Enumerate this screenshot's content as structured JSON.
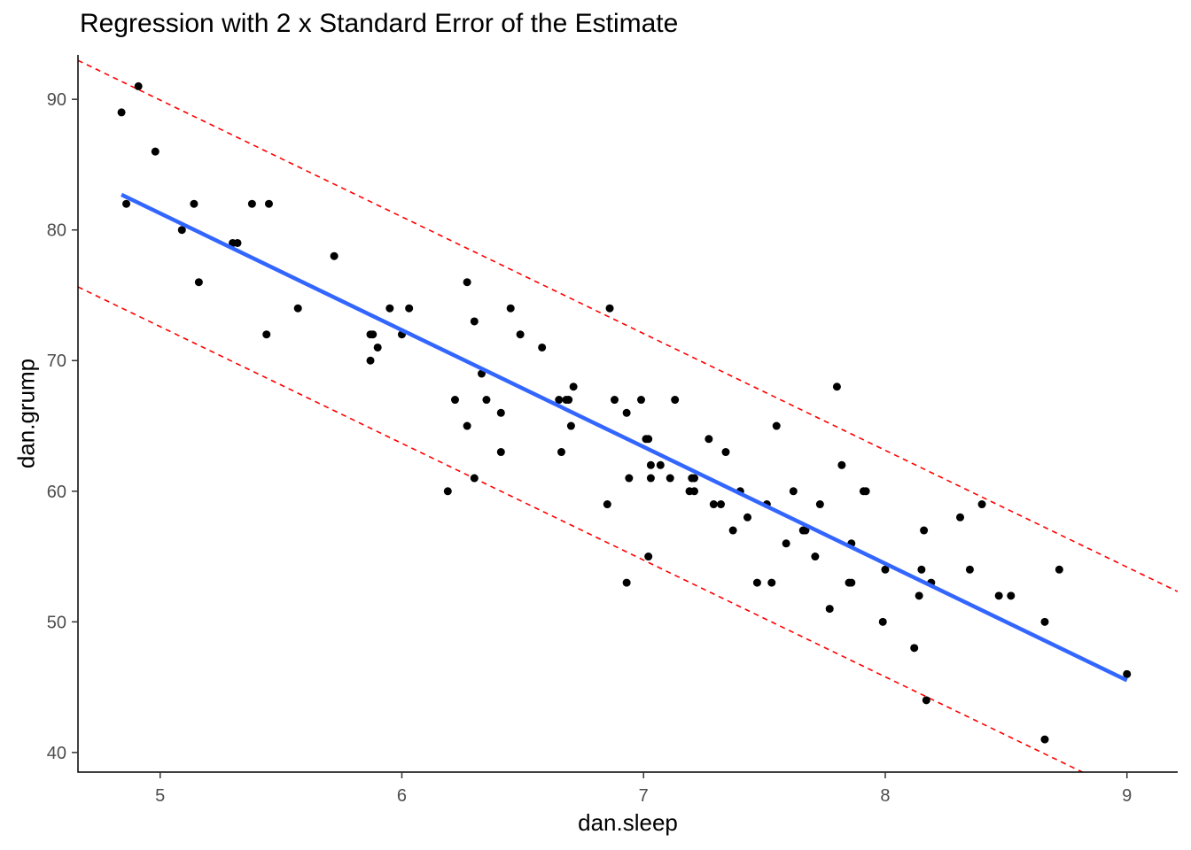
{
  "chart_data": {
    "type": "scatter",
    "title": "Regression with 2 x Standard Error of the Estimate",
    "xlabel": "dan.sleep",
    "ylabel": "dan.grump",
    "xlim": [
      4.66,
      9.21
    ],
    "ylim": [
      38.5,
      93.4
    ],
    "x_ticks": [
      5,
      6,
      7,
      8,
      9
    ],
    "y_ticks": [
      40,
      50,
      60,
      70,
      80,
      90
    ],
    "grid": false,
    "colors": {
      "points": "#000000",
      "regression_line": "#3366ff",
      "se_lines": "#ff0000",
      "axis": "#000000",
      "tick_text": "#4d4d4d"
    },
    "regression_line": {
      "intercept": 125.956,
      "slope": -8.937,
      "x_range": [
        4.84,
        9.0
      ]
    },
    "se_lines": {
      "offset": 8.67,
      "style": "dashed"
    },
    "points": [
      {
        "x": 4.84,
        "y": 89
      },
      {
        "x": 4.86,
        "y": 82
      },
      {
        "x": 4.91,
        "y": 91
      },
      {
        "x": 4.98,
        "y": 86
      },
      {
        "x": 5.09,
        "y": 80
      },
      {
        "x": 5.14,
        "y": 82
      },
      {
        "x": 5.16,
        "y": 76
      },
      {
        "x": 5.3,
        "y": 79
      },
      {
        "x": 5.32,
        "y": 79
      },
      {
        "x": 5.38,
        "y": 82
      },
      {
        "x": 5.44,
        "y": 72
      },
      {
        "x": 5.45,
        "y": 82
      },
      {
        "x": 5.57,
        "y": 74
      },
      {
        "x": 5.72,
        "y": 78
      },
      {
        "x": 5.87,
        "y": 72
      },
      {
        "x": 5.87,
        "y": 70
      },
      {
        "x": 5.88,
        "y": 72
      },
      {
        "x": 5.9,
        "y": 71
      },
      {
        "x": 5.95,
        "y": 74
      },
      {
        "x": 6.0,
        "y": 72
      },
      {
        "x": 6.03,
        "y": 74
      },
      {
        "x": 6.19,
        "y": 60
      },
      {
        "x": 6.22,
        "y": 67
      },
      {
        "x": 6.27,
        "y": 76
      },
      {
        "x": 6.27,
        "y": 65
      },
      {
        "x": 6.3,
        "y": 73
      },
      {
        "x": 6.3,
        "y": 61
      },
      {
        "x": 6.33,
        "y": 69
      },
      {
        "x": 6.35,
        "y": 67
      },
      {
        "x": 6.41,
        "y": 66
      },
      {
        "x": 6.41,
        "y": 63
      },
      {
        "x": 6.45,
        "y": 74
      },
      {
        "x": 6.49,
        "y": 72
      },
      {
        "x": 6.58,
        "y": 71
      },
      {
        "x": 6.65,
        "y": 67
      },
      {
        "x": 6.66,
        "y": 63
      },
      {
        "x": 6.68,
        "y": 67
      },
      {
        "x": 6.69,
        "y": 67
      },
      {
        "x": 6.7,
        "y": 65
      },
      {
        "x": 6.71,
        "y": 68
      },
      {
        "x": 6.85,
        "y": 59
      },
      {
        "x": 6.86,
        "y": 74
      },
      {
        "x": 6.88,
        "y": 67
      },
      {
        "x": 6.93,
        "y": 66
      },
      {
        "x": 6.93,
        "y": 53
      },
      {
        "x": 6.94,
        "y": 61
      },
      {
        "x": 6.99,
        "y": 67
      },
      {
        "x": 7.01,
        "y": 64
      },
      {
        "x": 7.02,
        "y": 64
      },
      {
        "x": 7.02,
        "y": 55
      },
      {
        "x": 7.03,
        "y": 62
      },
      {
        "x": 7.03,
        "y": 61
      },
      {
        "x": 7.07,
        "y": 62
      },
      {
        "x": 7.11,
        "y": 61
      },
      {
        "x": 7.13,
        "y": 67
      },
      {
        "x": 7.19,
        "y": 60
      },
      {
        "x": 7.2,
        "y": 61
      },
      {
        "x": 7.21,
        "y": 61
      },
      {
        "x": 7.21,
        "y": 60
      },
      {
        "x": 7.27,
        "y": 64
      },
      {
        "x": 7.29,
        "y": 59
      },
      {
        "x": 7.32,
        "y": 59
      },
      {
        "x": 7.34,
        "y": 63
      },
      {
        "x": 7.37,
        "y": 57
      },
      {
        "x": 7.4,
        "y": 60
      },
      {
        "x": 7.43,
        "y": 58
      },
      {
        "x": 7.47,
        "y": 53
      },
      {
        "x": 7.51,
        "y": 59
      },
      {
        "x": 7.53,
        "y": 53
      },
      {
        "x": 7.55,
        "y": 65
      },
      {
        "x": 7.59,
        "y": 56
      },
      {
        "x": 7.62,
        "y": 60
      },
      {
        "x": 7.66,
        "y": 57
      },
      {
        "x": 7.67,
        "y": 57
      },
      {
        "x": 7.71,
        "y": 55
      },
      {
        "x": 7.73,
        "y": 59
      },
      {
        "x": 7.77,
        "y": 51
      },
      {
        "x": 7.8,
        "y": 68
      },
      {
        "x": 7.82,
        "y": 62
      },
      {
        "x": 7.85,
        "y": 53
      },
      {
        "x": 7.86,
        "y": 56
      },
      {
        "x": 7.86,
        "y": 53
      },
      {
        "x": 7.91,
        "y": 60
      },
      {
        "x": 7.92,
        "y": 60
      },
      {
        "x": 7.99,
        "y": 50
      },
      {
        "x": 8.0,
        "y": 54
      },
      {
        "x": 8.12,
        "y": 48
      },
      {
        "x": 8.14,
        "y": 52
      },
      {
        "x": 8.15,
        "y": 54
      },
      {
        "x": 8.16,
        "y": 57
      },
      {
        "x": 8.17,
        "y": 44
      },
      {
        "x": 8.19,
        "y": 53
      },
      {
        "x": 8.31,
        "y": 58
      },
      {
        "x": 8.35,
        "y": 54
      },
      {
        "x": 8.4,
        "y": 59
      },
      {
        "x": 8.47,
        "y": 52
      },
      {
        "x": 8.52,
        "y": 52
      },
      {
        "x": 8.66,
        "y": 50
      },
      {
        "x": 8.66,
        "y": 41
      },
      {
        "x": 8.72,
        "y": 54
      },
      {
        "x": 9.0,
        "y": 46
      }
    ]
  }
}
